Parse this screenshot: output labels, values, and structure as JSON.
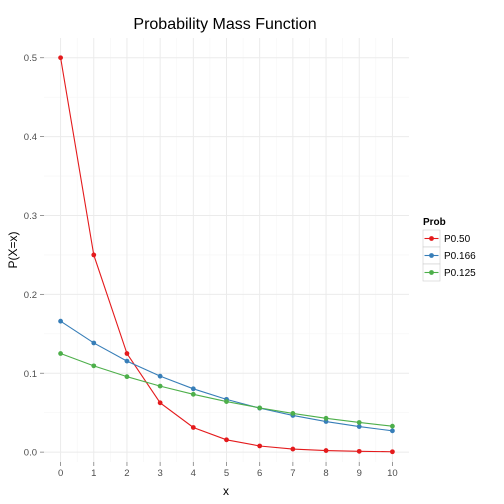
{
  "chart_data": {
    "type": "line",
    "title": "Probability Mass Function",
    "xlabel": "x",
    "ylabel": "P(X=x)",
    "x": [
      0,
      1,
      2,
      3,
      4,
      5,
      6,
      7,
      8,
      9,
      10
    ],
    "xlim": [
      -0.5,
      10.5
    ],
    "ylim": [
      -0.0125,
      0.525
    ],
    "xticks": [
      "0",
      "1",
      "2",
      "3",
      "4",
      "5",
      "6",
      "7",
      "8",
      "9",
      "10"
    ],
    "yticks": [
      "0.0",
      "0.1",
      "0.2",
      "0.3",
      "0.4",
      "0.5"
    ],
    "grid": true,
    "legend_title": "Prob",
    "legend_position": "right",
    "series": [
      {
        "name": "P0.50",
        "color": "#e41a1c",
        "values": [
          0.5,
          0.25,
          0.125,
          0.0625,
          0.03125,
          0.015625,
          0.0078,
          0.0039,
          0.002,
          0.001,
          0.0005
        ]
      },
      {
        "name": "P0.166",
        "color": "#377eb8",
        "values": [
          0.166,
          0.1384,
          0.1154,
          0.0963,
          0.0803,
          0.0669,
          0.0558,
          0.0465,
          0.0388,
          0.0324,
          0.027
        ]
      },
      {
        "name": "P0.125",
        "color": "#4daf4a",
        "values": [
          0.125,
          0.1094,
          0.0957,
          0.0837,
          0.0733,
          0.0641,
          0.0561,
          0.0491,
          0.0429,
          0.0376,
          0.0329
        ]
      }
    ]
  }
}
